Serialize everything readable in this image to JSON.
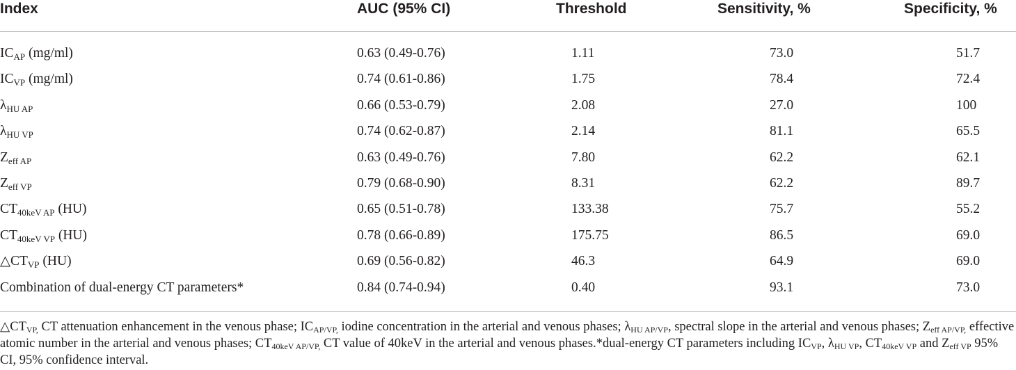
{
  "table": {
    "headers": {
      "index": "Index",
      "auc": "AUC (95% CI)",
      "threshold": "Threshold",
      "sensitivity": "Sensitivity, %",
      "specificity": "Specificity, %"
    },
    "rows": [
      {
        "label": {
          "main": "IC",
          "sub": "AP",
          "suffix": " (mg/ml)"
        },
        "auc": "0.63 (0.49-0.76)",
        "threshold": "1.11",
        "sensitivity": "73.0",
        "specificity": "51.7"
      },
      {
        "label": {
          "main": "IC",
          "sub": "VP",
          "suffix": " (mg/ml)"
        },
        "auc": "0.74 (0.61-0.86)",
        "threshold": "1.75",
        "sensitivity": "78.4",
        "specificity": "72.4"
      },
      {
        "label": {
          "main": "λ",
          "sub": "HU AP",
          "suffix": ""
        },
        "auc": "0.66 (0.53-0.79)",
        "threshold": "2.08",
        "sensitivity": "27.0",
        "specificity": "100"
      },
      {
        "label": {
          "main": "λ",
          "sub": "HU VP",
          "suffix": ""
        },
        "auc": "0.74 (0.62-0.87)",
        "threshold": "2.14",
        "sensitivity": "81.1",
        "specificity": "65.5"
      },
      {
        "label": {
          "main": "Z",
          "sub": "eff AP",
          "suffix": ""
        },
        "auc": "0.63 (0.49-0.76)",
        "threshold": "7.80",
        "sensitivity": "62.2",
        "specificity": "62.1"
      },
      {
        "label": {
          "main": "Z",
          "sub": "eff VP",
          "suffix": ""
        },
        "auc": "0.79 (0.68-0.90)",
        "threshold": "8.31",
        "sensitivity": "62.2",
        "specificity": "89.7"
      },
      {
        "label": {
          "main": "CT",
          "sub": "40keV AP",
          "suffix": " (HU)"
        },
        "auc": "0.65 (0.51-0.78)",
        "threshold": "133.38",
        "sensitivity": "75.7",
        "specificity": "55.2"
      },
      {
        "label": {
          "main": "CT",
          "sub": "40keV VP",
          "suffix": " (HU)"
        },
        "auc": "0.78 (0.66-0.89)",
        "threshold": "175.75",
        "sensitivity": "86.5",
        "specificity": "69.0"
      },
      {
        "label": {
          "main": "△CT",
          "sub": "VP",
          "suffix": " (HU)"
        },
        "auc": "0.69 (0.56-0.82)",
        "threshold": "46.3",
        "sensitivity": "64.9",
        "specificity": "69.0"
      },
      {
        "label": {
          "main": "Combination of dual-energy CT parameters*",
          "sub": "",
          "suffix": ""
        },
        "auc": "0.84 (0.74-0.94)",
        "threshold": "0.40",
        "sensitivity": "93.1",
        "specificity": "73.0"
      }
    ]
  },
  "footnote": {
    "parts": [
      {
        "t": "△CT"
      },
      {
        "s": "VP,"
      },
      {
        "t": " CT attenuation enhancement in the venous phase; IC"
      },
      {
        "s": "AP/VP,"
      },
      {
        "t": " iodine concentration in the arterial and venous phases; λ"
      },
      {
        "s": "HU AP/VP"
      },
      {
        "t": ", spectral slope in the arterial and venous phases; Z"
      },
      {
        "s": "eff AP/VP,"
      },
      {
        "t": " effective atomic number in the arterial and venous phases; CT"
      },
      {
        "s": "40keV AP/VP,"
      },
      {
        "t": " CT value of 40keV in the arterial and venous phases.*dual-energy CT parameters including IC"
      },
      {
        "s": "VP"
      },
      {
        "t": ", λ"
      },
      {
        "s": "HU VP"
      },
      {
        "t": ", CT"
      },
      {
        "s": "40keV VP"
      },
      {
        "t": " and Z"
      },
      {
        "s": "eff VP"
      },
      {
        "t": " 95% CI, 95% confidence interval."
      }
    ]
  }
}
